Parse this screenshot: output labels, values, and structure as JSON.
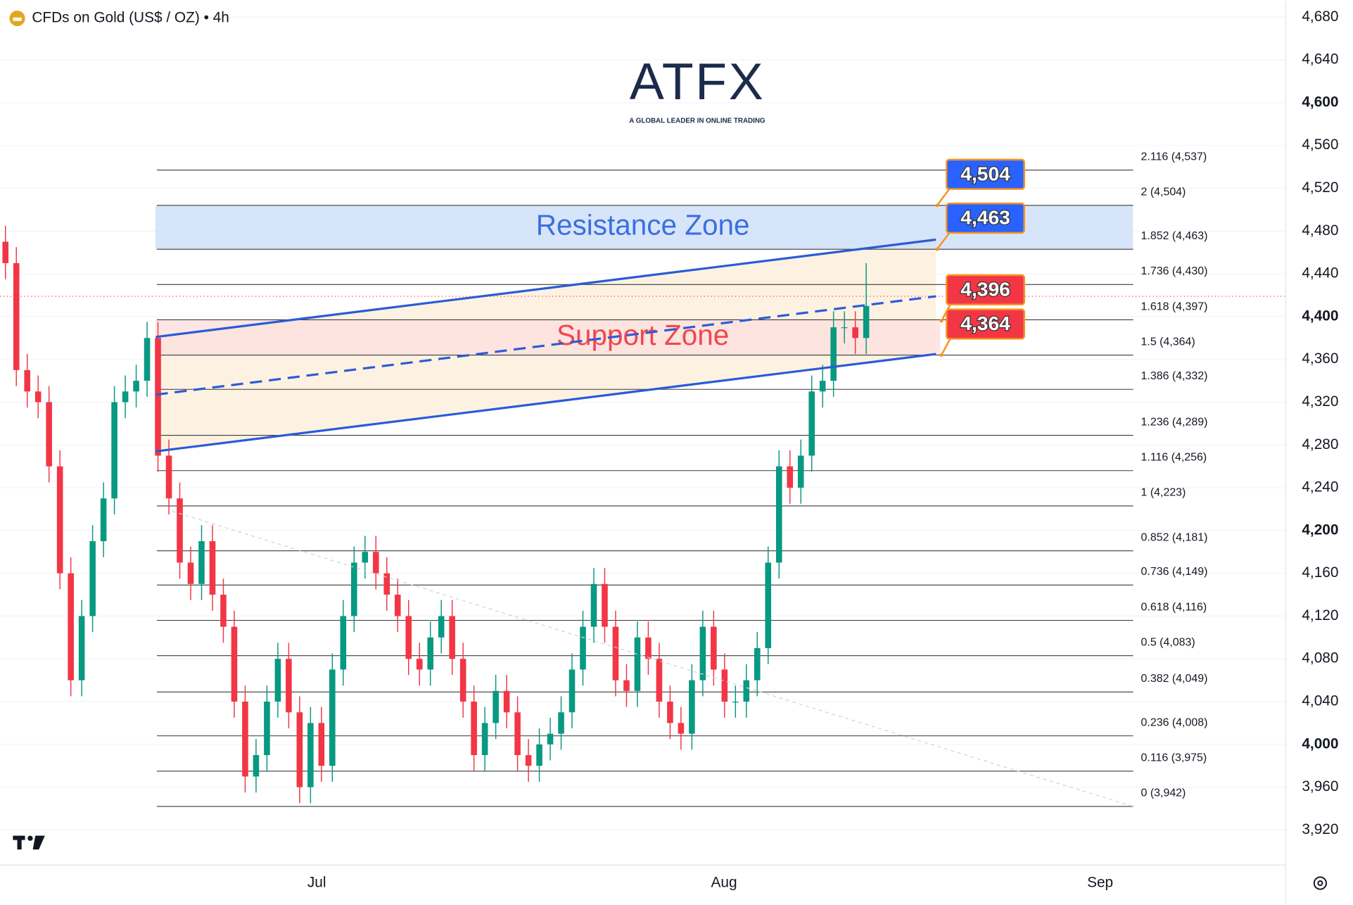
{
  "logo": {
    "name": "ATFX",
    "tagline": "A GLOBAL LEADER IN ONLINE TRADING"
  },
  "chart_data": {
    "type": "candlestick",
    "title": "CFDs on Gold (US$ / OZ) • 4h",
    "up_color": "#089981",
    "down_color": "#f23645",
    "open": [
      4470,
      4450,
      4350,
      4330,
      4320,
      4260,
      4160,
      4060,
      4120,
      4190,
      4230,
      4320,
      4330,
      4340,
      4380,
      4270,
      4230,
      4170,
      4150,
      4190,
      4140,
      4110,
      4040,
      3970,
      3990,
      4040,
      4080,
      4030,
      3960,
      4020,
      3980,
      4070,
      4120,
      4170,
      4180,
      4160,
      4140,
      4120,
      4080,
      4070,
      4100,
      4120,
      4080,
      4040,
      3990,
      4020,
      4050,
      4030,
      3990,
      3980,
      4000,
      4010,
      4030,
      4070,
      4110,
      4150,
      4110,
      4060,
      4050,
      4100,
      4080,
      4040,
      4020,
      4010,
      4060,
      4110,
      4070,
      4040,
      4040,
      4060,
      4090,
      4170,
      4260,
      4240,
      4270,
      4330,
      4340,
      4390,
      4390,
      4380
    ],
    "high": [
      4485,
      4465,
      4365,
      4345,
      4335,
      4275,
      4175,
      4135,
      4205,
      4245,
      4335,
      4345,
      4355,
      4395,
      4395,
      4285,
      4245,
      4185,
      4205,
      4205,
      4155,
      4125,
      4055,
      4005,
      4055,
      4095,
      4095,
      4045,
      4035,
      4035,
      4085,
      4135,
      4185,
      4195,
      4195,
      4175,
      4155,
      4135,
      4095,
      4115,
      4135,
      4135,
      4095,
      4055,
      4035,
      4065,
      4065,
      4045,
      4005,
      4015,
      4025,
      4045,
      4085,
      4125,
      4165,
      4165,
      4125,
      4075,
      4115,
      4115,
      4095,
      4055,
      4035,
      4075,
      4125,
      4125,
      4085,
      4055,
      4075,
      4105,
      4185,
      4275,
      4275,
      4285,
      4345,
      4355,
      4405,
      4405,
      4405,
      4450
    ],
    "low": [
      4435,
      4335,
      4315,
      4305,
      4245,
      4145,
      4045,
      4045,
      4105,
      4175,
      4215,
      4305,
      4315,
      4325,
      4255,
      4215,
      4155,
      4135,
      4135,
      4125,
      4095,
      4025,
      3955,
      3955,
      3975,
      4025,
      4015,
      3945,
      3945,
      3965,
      3965,
      4055,
      4105,
      4155,
      4145,
      4125,
      4105,
      4065,
      4055,
      4055,
      4085,
      4065,
      4025,
      3975,
      3975,
      4005,
      4015,
      3975,
      3965,
      3965,
      3985,
      3995,
      4015,
      4055,
      4095,
      4095,
      4045,
      4035,
      4035,
      4065,
      4025,
      4005,
      3995,
      3995,
      4045,
      4055,
      4025,
      4025,
      4025,
      4045,
      4075,
      4155,
      4225,
      4225,
      4255,
      4315,
      4325,
      4375,
      4365,
      4365
    ],
    "close": [
      4450,
      4350,
      4330,
      4320,
      4260,
      4160,
      4060,
      4120,
      4190,
      4230,
      4320,
      4330,
      4340,
      4380,
      4270,
      4230,
      4170,
      4150,
      4190,
      4140,
      4110,
      4040,
      3970,
      3990,
      4040,
      4080,
      4030,
      3960,
      4020,
      3980,
      4070,
      4120,
      4170,
      4180,
      4160,
      4140,
      4120,
      4080,
      4070,
      4100,
      4120,
      4080,
      4040,
      3990,
      4020,
      4050,
      4030,
      3990,
      3980,
      4000,
      4010,
      4030,
      4070,
      4110,
      4150,
      4110,
      4060,
      4050,
      4100,
      4080,
      4040,
      4020,
      4010,
      4060,
      4110,
      4070,
      4040,
      4040,
      4060,
      4090,
      4170,
      4260,
      4240,
      4270,
      4330,
      4340,
      4390,
      4390,
      4380,
      4410
    ],
    "xlim": [
      0,
      118
    ],
    "xticks": [
      {
        "value": 29.07,
        "label": "Jul"
      },
      {
        "value": 66.45,
        "label": "Aug"
      },
      {
        "value": 100.97,
        "label": "Sep"
      }
    ],
    "ylim": [
      3888,
      4695
    ],
    "yticks": [
      {
        "value": 3920,
        "label": "3,920"
      },
      {
        "value": 3960,
        "label": "3,960"
      },
      {
        "value": 4000,
        "label": "4,000"
      },
      {
        "value": 4040,
        "label": "4,040"
      },
      {
        "value": 4080,
        "label": "4,080"
      },
      {
        "value": 4120,
        "label": "4,120"
      },
      {
        "value": 4160,
        "label": "4,160"
      },
      {
        "value": 4200,
        "label": "4,200"
      },
      {
        "value": 4240,
        "label": "4,240"
      },
      {
        "value": 4280,
        "label": "4,280"
      },
      {
        "value": 4320,
        "label": "4,320"
      },
      {
        "value": 4360,
        "label": "4,360"
      },
      {
        "value": 4400,
        "label": "4,400"
      },
      {
        "value": 4440,
        "label": "4,440"
      },
      {
        "value": 4480,
        "label": "4,480"
      },
      {
        "value": 4520,
        "label": "4,520"
      },
      {
        "value": 4560,
        "label": "4,560"
      },
      {
        "value": 4600,
        "label": "4,600"
      },
      {
        "value": 4640,
        "label": "4,640"
      },
      {
        "value": 4680,
        "label": "4,680"
      }
    ],
    "grid": true,
    "current_price": 4419,
    "fib_x": [
      14.4,
      104
    ],
    "fib_levels": [
      {
        "label": "2.116 (4,537)",
        "value": 4537
      },
      {
        "label": "2 (4,504)",
        "value": 4504
      },
      {
        "label": "1.852 (4,463)",
        "value": 4463
      },
      {
        "label": "1.736 (4,430)",
        "value": 4430
      },
      {
        "label": "1.618 (4,397)",
        "value": 4397
      },
      {
        "label": "1.5 (4,364)",
        "value": 4364
      },
      {
        "label": "1.386 (4,332)",
        "value": 4332
      },
      {
        "label": "1.236 (4,289)",
        "value": 4289
      },
      {
        "label": "1.116 (4,256)",
        "value": 4256
      },
      {
        "label": "1 (4,223)",
        "value": 4223
      },
      {
        "label": "0.852 (4,181)",
        "value": 4181
      },
      {
        "label": "0.736 (4,149)",
        "value": 4149
      },
      {
        "label": "0.618 (4,116)",
        "value": 4116
      },
      {
        "label": "0.5 (4,083)",
        "value": 4083
      },
      {
        "label": "0.382 (4,049)",
        "value": 4049
      },
      {
        "label": "0.236 (4,008)",
        "value": 4008
      },
      {
        "label": "0.116 (3,975)",
        "value": 3975
      },
      {
        "label": "0 (3,942)",
        "value": 3942
      }
    ],
    "zones": [
      {
        "name": "Resistance Zone",
        "from": 4463,
        "to": 4504,
        "x": [
          14.26,
          103.98
        ],
        "color": "#cddff9",
        "text_color": "#3b6fe0"
      },
      {
        "name": "Support Zone",
        "from": 4364,
        "to": 4397,
        "x": [
          14.26,
          86.3
        ],
        "color": "#fde0df",
        "text_color": "#f0474f"
      }
    ],
    "channel_fill": "#fdf0dc",
    "trend_lines": [
      {
        "x": [
          14.3,
          85.9
        ],
        "y": [
          4381,
          4472
        ],
        "color": "#2a5bd7",
        "style": "solid"
      },
      {
        "x": [
          14.3,
          85.9
        ],
        "y": [
          4274,
          4365
        ],
        "color": "#2a5bd7",
        "style": "solid"
      },
      {
        "x": [
          14.3,
          85.9
        ],
        "y": [
          4327,
          4419
        ],
        "color": "#2a5bd7",
        "style": "dashed"
      },
      {
        "x": [
          15.8,
          104
        ],
        "y": [
          4218,
          3942
        ],
        "color": "#cfd2d8",
        "style": "dotted"
      }
    ],
    "callouts": [
      {
        "value": 4504,
        "label": "4,504",
        "color": "#2962ff"
      },
      {
        "value": 4463,
        "label": "4,463",
        "color": "#2962ff"
      },
      {
        "value": 4396,
        "label": "4,396",
        "color": "#f23645"
      },
      {
        "value": 4364,
        "label": "4,364",
        "color": "#f23645"
      }
    ]
  }
}
